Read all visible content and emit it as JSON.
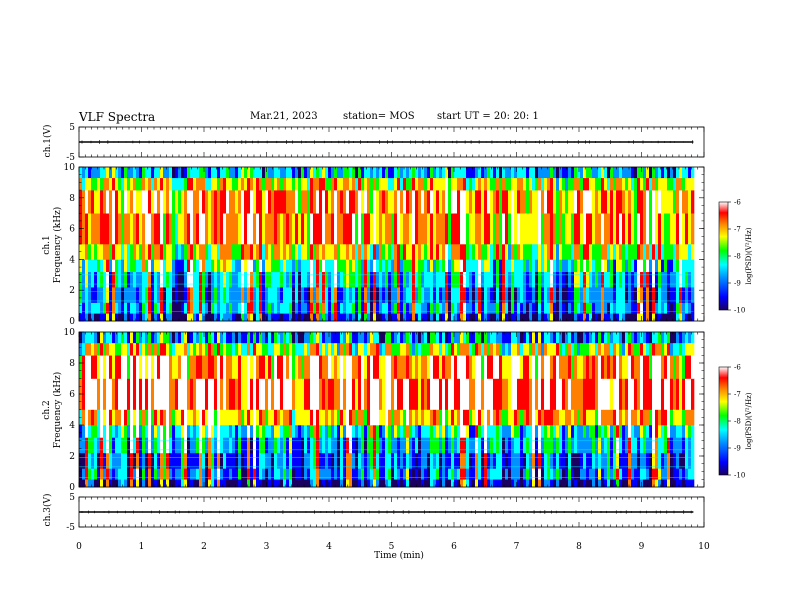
{
  "header": {
    "title": "VLF Spectra",
    "date": "Mar.21, 2023",
    "station": "station= MOS",
    "start": "start UT =  20: 20: 1"
  },
  "colors": {
    "waveform": "#000000",
    "colormap": [
      "#1a0060",
      "#0000ff",
      "#0090ff",
      "#00ffff",
      "#00ff00",
      "#ffff00",
      "#ff8000",
      "#ff0000",
      "#ffffff"
    ]
  },
  "chart_data": [
    {
      "type": "line",
      "panel": "ch1-waveform",
      "ylabel": "ch.1(V)",
      "ylim": [
        -5,
        5
      ],
      "yticks": [
        "5",
        "-5"
      ],
      "xlim": [
        0,
        10
      ],
      "series": [
        {
          "values": [
            0,
            0
          ],
          "x": [
            0,
            9.83
          ]
        }
      ]
    },
    {
      "type": "heatmap",
      "panel": "ch1-spectrogram",
      "ylabel": "ch.1\nFrequency (kHz)",
      "ylabel_line1": "ch.1",
      "ylabel_line2": "Frequency (kHz)",
      "ylim": [
        0,
        10
      ],
      "yticks": [
        "0",
        "2",
        "4",
        "6",
        "8",
        "10"
      ],
      "xlim": [
        0,
        10
      ],
      "data_end_min": 9.83,
      "colorbar": {
        "label": "log(PSD)(V²/Hz)",
        "ticks": [
          "-6",
          "-7",
          "-8",
          "-9",
          "-10"
        ],
        "range": [
          -10,
          -6
        ]
      }
    },
    {
      "type": "heatmap",
      "panel": "ch2-spectrogram",
      "ylabel_line1": "ch.2",
      "ylabel_line2": "Frequency (kHz)",
      "ylim": [
        0,
        10
      ],
      "yticks": [
        "0",
        "2",
        "4",
        "6",
        "8",
        "10"
      ],
      "xlim": [
        0,
        10
      ],
      "data_end_min": 9.83,
      "colorbar": {
        "label": "log(PSD)(V²/Hz)",
        "ticks": [
          "-6",
          "-7",
          "-8",
          "-9",
          "-10"
        ],
        "range": [
          -10,
          -6
        ]
      }
    },
    {
      "type": "line",
      "panel": "ch3-waveform",
      "ylabel": "ch.3(V)",
      "ylim": [
        -5,
        5
      ],
      "yticks": [
        "5",
        "-5"
      ],
      "xlim": [
        0,
        10
      ],
      "series": [
        {
          "values": [
            0,
            0
          ],
          "x": [
            0,
            9.83
          ]
        }
      ]
    }
  ],
  "xaxis": {
    "label": "Time (min)",
    "ticks": [
      "0",
      "1",
      "2",
      "3",
      "4",
      "5",
      "6",
      "7",
      "8",
      "9",
      "10"
    ]
  }
}
